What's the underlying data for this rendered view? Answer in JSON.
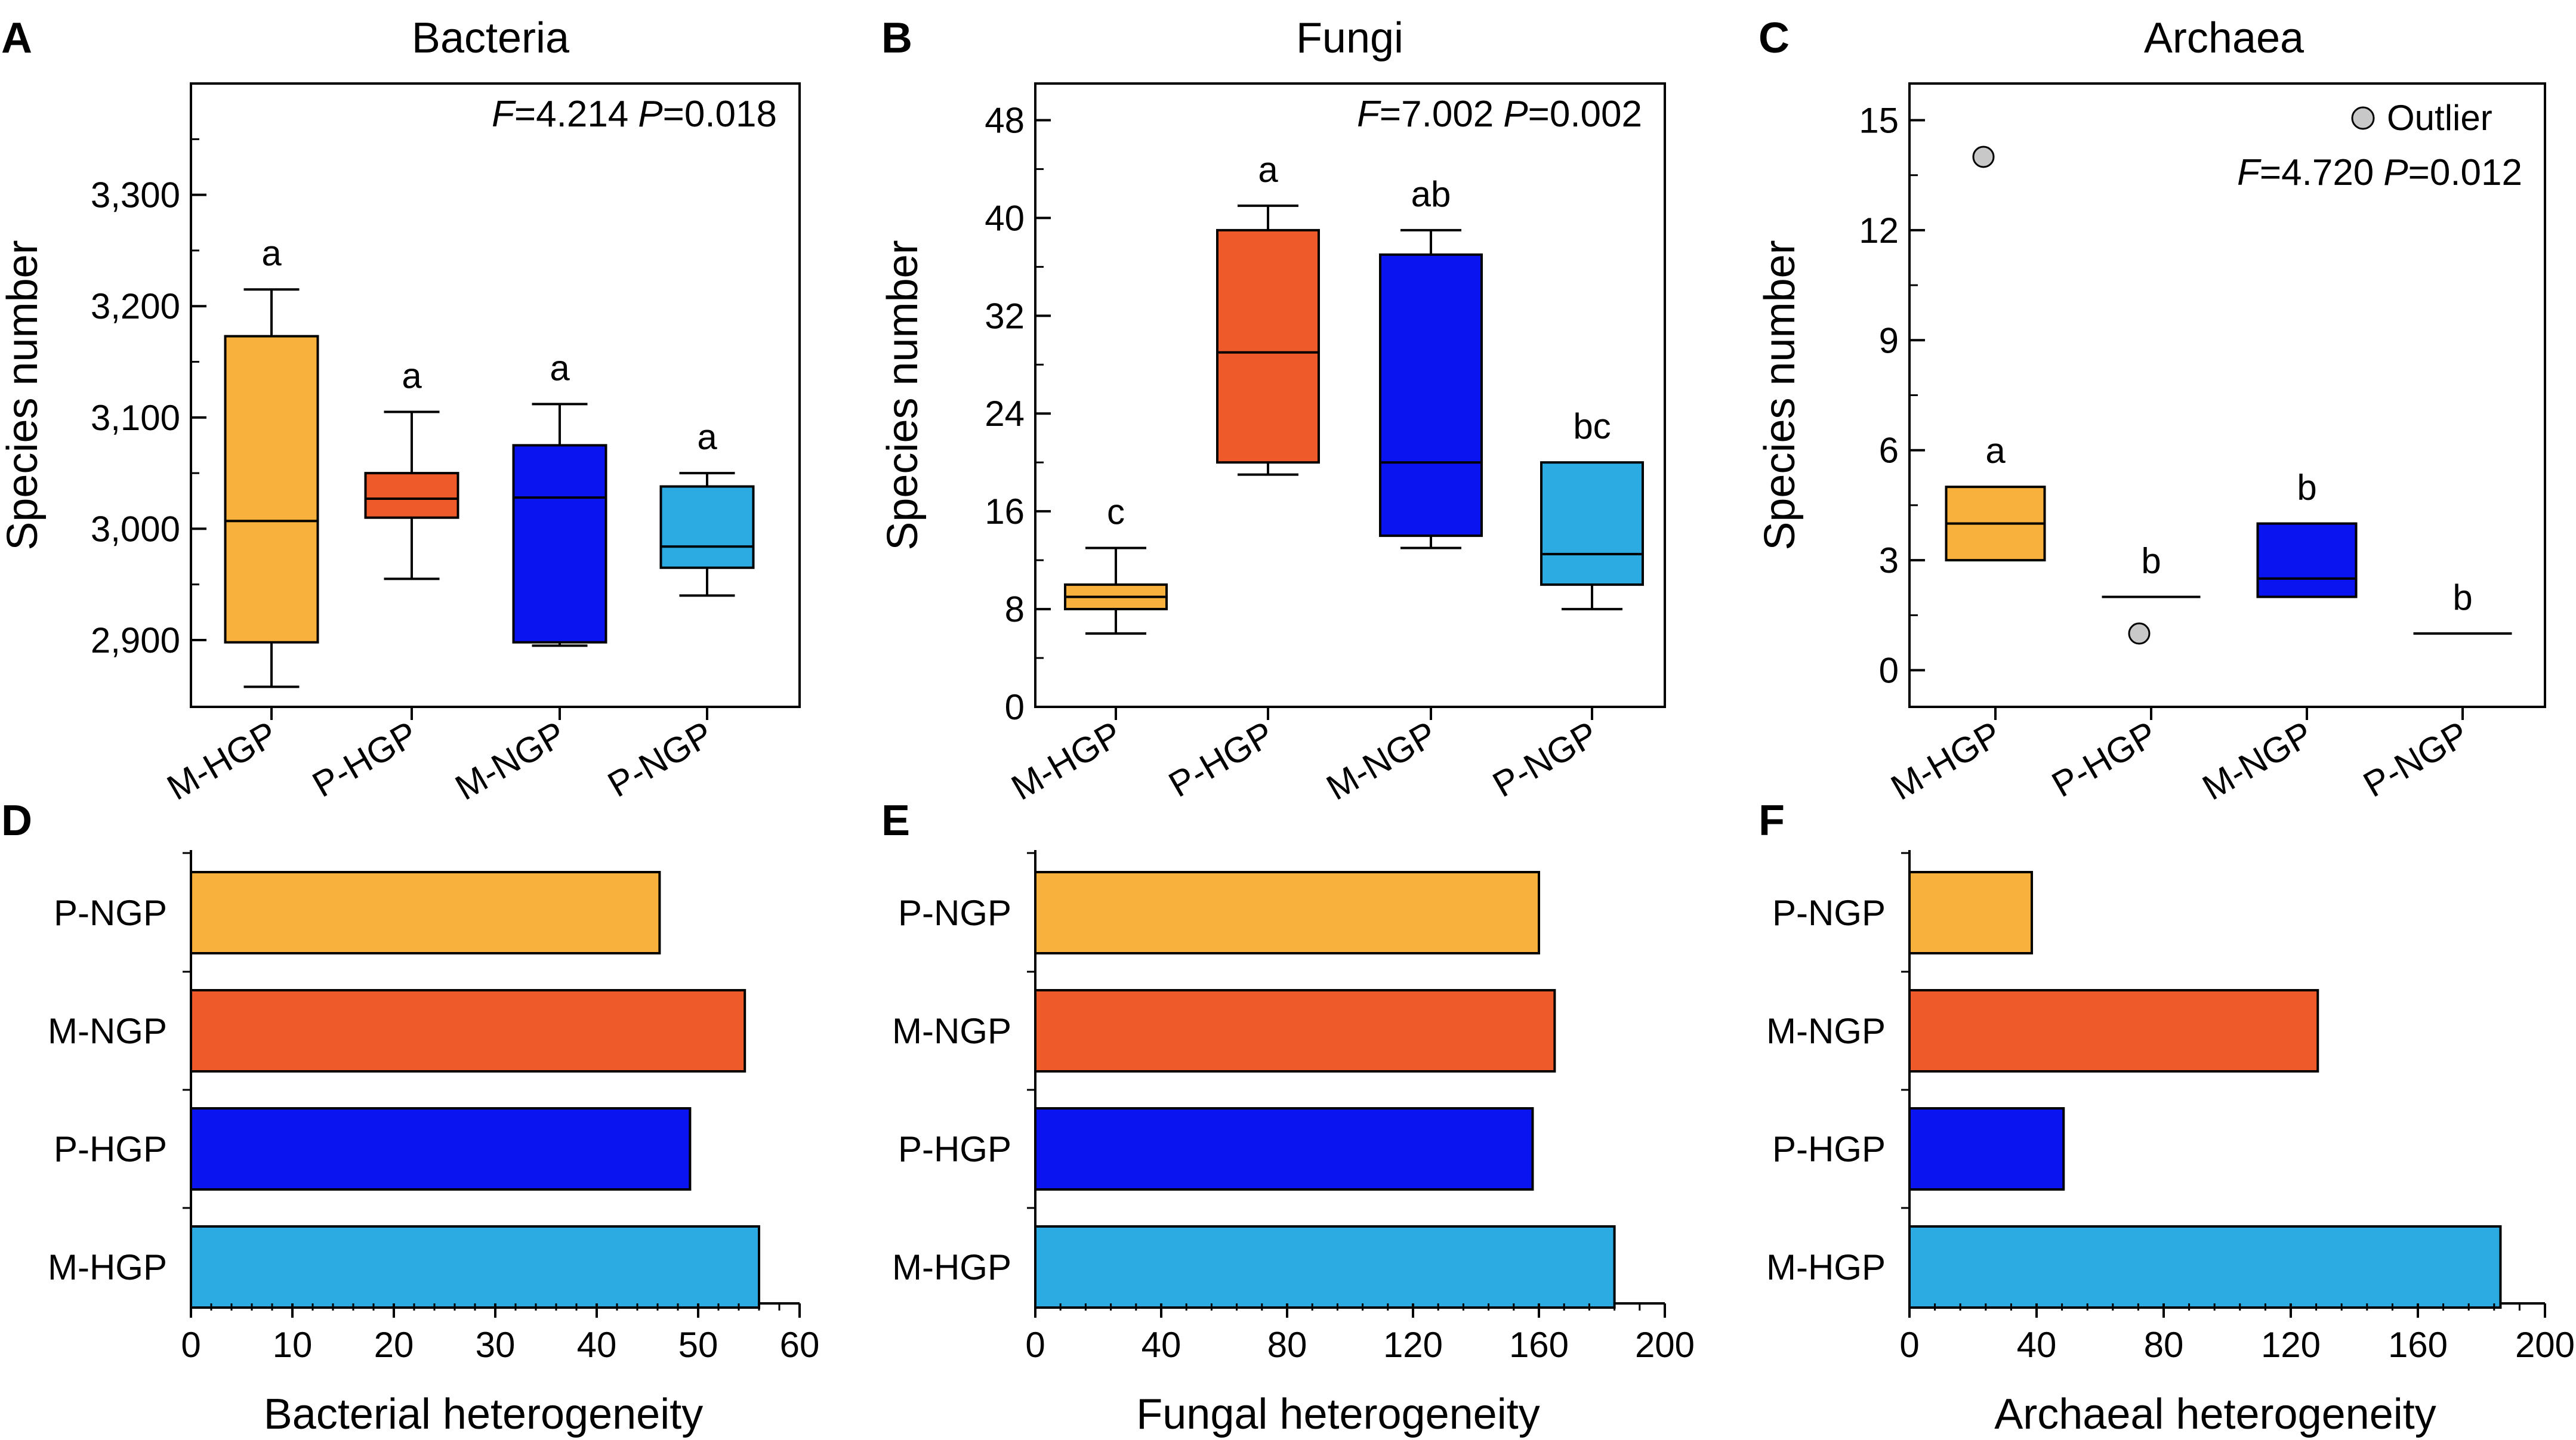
{
  "colors": {
    "orange": "#F8B13D",
    "red": "#EF5A2A",
    "blue": "#0A14F0",
    "cyan": "#2CAAE2",
    "outlier": "#C8C8C8"
  },
  "chart_data": [
    {
      "panel": "A",
      "type": "box",
      "title": "Bacteria",
      "ylabel": "Species number",
      "ylim": [
        2840,
        3400
      ],
      "yticks": [
        2900,
        3000,
        3100,
        3200,
        3300
      ],
      "ytick_labels": [
        "2,900",
        "3,000",
        "3,100",
        "3,200",
        "3,300"
      ],
      "categories": [
        "M-HGP",
        "P-HGP",
        "M-NGP",
        "P-NGP"
      ],
      "stat": {
        "f_label": "F",
        "f_value": "=4.214",
        "p_label": "P",
        "p_value": "=0.018"
      },
      "boxes": [
        {
          "name": "M-HGP",
          "color": "orange",
          "whisker_low": 2858,
          "q1": 2898,
          "median": 3007,
          "q3": 3173,
          "whisker_high": 3215,
          "letter": "a"
        },
        {
          "name": "P-HGP",
          "color": "red",
          "whisker_low": 2955,
          "q1": 3010,
          "median": 3027,
          "q3": 3050,
          "whisker_high": 3105,
          "letter": "a"
        },
        {
          "name": "M-NGP",
          "color": "blue",
          "whisker_low": 2895,
          "q1": 2898,
          "median": 3028,
          "q3": 3075,
          "whisker_high": 3112,
          "letter": "a"
        },
        {
          "name": "P-NGP",
          "color": "cyan",
          "whisker_low": 2940,
          "q1": 2965,
          "median": 2984,
          "q3": 3038,
          "whisker_high": 3050,
          "letter": "a"
        }
      ]
    },
    {
      "panel": "B",
      "type": "box",
      "title": "Fungi",
      "ylabel": "Species number",
      "ylim": [
        0,
        51
      ],
      "yticks": [
        0,
        8,
        16,
        24,
        32,
        40,
        48
      ],
      "ytick_labels": [
        "0",
        "8",
        "16",
        "24",
        "32",
        "40",
        "48"
      ],
      "categories": [
        "M-HGP",
        "P-HGP",
        "M-NGP",
        "P-NGP"
      ],
      "stat": {
        "f_label": "F",
        "f_value": "=7.002",
        "p_label": "P",
        "p_value": "=0.002"
      },
      "boxes": [
        {
          "name": "M-HGP",
          "color": "orange",
          "whisker_low": 6,
          "q1": 8,
          "median": 9,
          "q3": 10,
          "whisker_high": 13,
          "letter": "c"
        },
        {
          "name": "P-HGP",
          "color": "red",
          "whisker_low": 19,
          "q1": 20,
          "median": 29,
          "q3": 39,
          "whisker_high": 41,
          "letter": "a"
        },
        {
          "name": "M-NGP",
          "color": "blue",
          "whisker_low": 13,
          "q1": 14,
          "median": 20,
          "q3": 37,
          "whisker_high": 39,
          "letter": "ab"
        },
        {
          "name": "P-NGP",
          "color": "cyan",
          "whisker_low": 8,
          "q1": 10,
          "median": 12.5,
          "q3": 20,
          "whisker_high": 20,
          "letter": "bc"
        }
      ]
    },
    {
      "panel": "C",
      "type": "box",
      "title": "Archaea",
      "ylabel": "Species number",
      "ylim": [
        -1,
        16
      ],
      "yticks": [
        0,
        3,
        6,
        9,
        12,
        15
      ],
      "ytick_labels": [
        "0",
        "3",
        "6",
        "9",
        "12",
        "15"
      ],
      "categories": [
        "M-HGP",
        "P-HGP",
        "M-NGP",
        "P-NGP"
      ],
      "legend": "Outlier",
      "stat": {
        "f_label": "F",
        "f_value": "=4.720",
        "p_label": "P",
        "p_value": "=0.012"
      },
      "boxes": [
        {
          "name": "M-HGP",
          "color": "orange",
          "whisker_low": 3,
          "q1": 3,
          "median": 4,
          "q3": 5,
          "whisker_high": 5,
          "letter": "a",
          "outliers": [
            14
          ]
        },
        {
          "name": "P-HGP",
          "color": "red",
          "whisker_low": 2,
          "q1": 2,
          "median": 2,
          "q3": 2,
          "whisker_high": 2,
          "letter": "b",
          "outliers": [
            1
          ]
        },
        {
          "name": "M-NGP",
          "color": "blue",
          "whisker_low": 2,
          "q1": 2,
          "median": 2.5,
          "q3": 4,
          "whisker_high": 4,
          "letter": "b"
        },
        {
          "name": "P-NGP",
          "color": "cyan",
          "whisker_low": 1,
          "q1": 1,
          "median": 1,
          "q3": 1,
          "whisker_high": 1,
          "letter": "b"
        }
      ]
    },
    {
      "panel": "D",
      "type": "bar",
      "orientation": "horizontal",
      "xlabel": "Bacterial heterogeneity",
      "xlim": [
        0,
        60
      ],
      "xticks": [
        0,
        10,
        20,
        30,
        40,
        50,
        60
      ],
      "categories": [
        "P-NGP",
        "M-NGP",
        "P-HGP",
        "M-HGP"
      ],
      "values": [
        46.2,
        54.6,
        49.2,
        56
      ],
      "colors": [
        "orange",
        "red",
        "blue",
        "cyan"
      ]
    },
    {
      "panel": "E",
      "type": "bar",
      "orientation": "horizontal",
      "xlabel": "Fungal heterogeneity",
      "xlim": [
        0,
        200
      ],
      "xticks": [
        0,
        40,
        80,
        120,
        160,
        200
      ],
      "categories": [
        "P-NGP",
        "M-NGP",
        "P-HGP",
        "M-HGP"
      ],
      "values": [
        160,
        165,
        158,
        184
      ],
      "colors": [
        "orange",
        "red",
        "blue",
        "cyan"
      ]
    },
    {
      "panel": "F",
      "type": "bar",
      "orientation": "horizontal",
      "xlabel": "Archaeal heterogeneity",
      "xlim": [
        0,
        200
      ],
      "xticks": [
        0,
        40,
        80,
        120,
        160,
        200
      ],
      "categories": [
        "P-NGP",
        "M-NGP",
        "P-HGP",
        "M-HGP"
      ],
      "values": [
        38.5,
        128.5,
        48.5,
        186
      ],
      "colors": [
        "orange",
        "red",
        "blue",
        "cyan"
      ]
    }
  ]
}
